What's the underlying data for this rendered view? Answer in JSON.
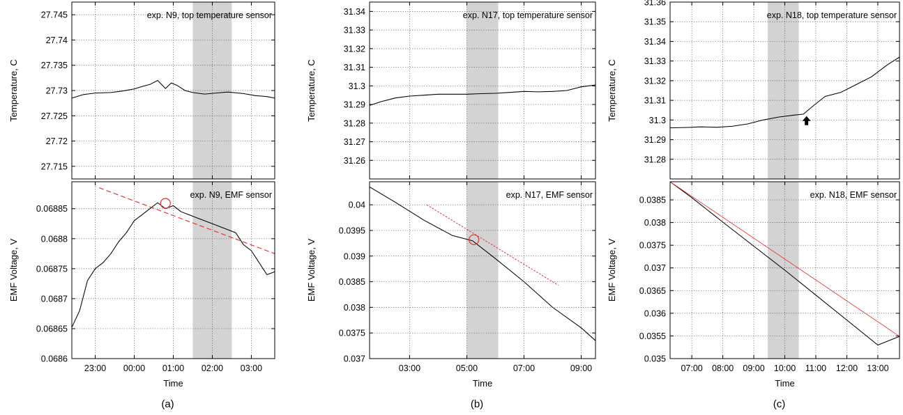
{
  "panels": [
    {
      "caption": "(a)",
      "xlabel": "Time",
      "xticks": [
        "23:00",
        "00:00",
        "01:00",
        "02:00",
        "03:00"
      ],
      "shade_x": [
        1.5,
        2.5
      ],
      "top": {
        "ylabel": "Temperature, C",
        "annotation": "exp. N9, top temperature sensor",
        "yticks": [
          "27.715",
          "27.72",
          "27.725",
          "27.73",
          "27.735",
          "27.74",
          "27.745"
        ]
      },
      "bottom": {
        "ylabel": "EMF Voltage, V",
        "annotation": "exp. N9, EMF sensor",
        "yticks": [
          "0.0686",
          "0.06865",
          "0.0687",
          "0.06875",
          "0.0688",
          "0.06885"
        ]
      }
    },
    {
      "caption": "(b)",
      "xlabel": "Time",
      "xticks": [
        "03:00",
        "05:00",
        "07:00",
        "09:00"
      ],
      "shade_x": [
        5.0,
        6.1
      ],
      "top": {
        "ylabel": "Temperature, C",
        "annotation": "exp. N17, top temperature sensor",
        "yticks": [
          "31.26",
          "31.27",
          "31.28",
          "31.29",
          "31.3",
          "31.31",
          "31.32",
          "31.33",
          "31.34"
        ]
      },
      "bottom": {
        "ylabel": "EMF Voltage, V",
        "annotation": "exp. N17, EMF sensor",
        "yticks": [
          "0.037",
          "0.0375",
          "0.038",
          "0.0385",
          "0.039",
          "0.0395",
          "0.04"
        ]
      }
    },
    {
      "caption": "(c)",
      "xlabel": "Time",
      "xticks": [
        "07:00",
        "08:00",
        "09:00",
        "10:00",
        "11:00",
        "12:00",
        "13:00"
      ],
      "shade_x": [
        9.45,
        10.45
      ],
      "top": {
        "ylabel": "Temperature, C",
        "annotation": "exp. N18, top temperature sensor",
        "yticks": [
          "31.28",
          "31.29",
          "31.3",
          "31.31",
          "31.32",
          "31.33",
          "31.34",
          "31.35",
          "31.36"
        ]
      },
      "bottom": {
        "ylabel": "EMF Voltage, V",
        "annotation": "exp. N18, EMF sensor",
        "yticks": [
          "0.035",
          "0.0355",
          "0.036",
          "0.0365",
          "0.037",
          "0.0375",
          "0.038",
          "0.0385"
        ]
      }
    }
  ],
  "chart_data": [
    {
      "type": "line",
      "panel": "a-top",
      "xlabel": "Time",
      "ylabel": "Temperature, C",
      "xlim": [
        -1.6,
        3.6
      ],
      "ylim": [
        27.7125,
        27.7475
      ],
      "x": [
        -1.6,
        -1.3,
        -1.0,
        -0.6,
        -0.3,
        0.0,
        0.2,
        0.4,
        0.6,
        0.8,
        0.95,
        1.1,
        1.3,
        1.5,
        1.8,
        2.1,
        2.4,
        2.8,
        3.1,
        3.4,
        3.6
      ],
      "values": [
        27.7285,
        27.7292,
        27.7295,
        27.7296,
        27.7299,
        27.7303,
        27.7308,
        27.7312,
        27.732,
        27.7304,
        27.7315,
        27.731,
        27.73,
        27.7296,
        27.7293,
        27.7295,
        27.7297,
        27.7294,
        27.729,
        27.7288,
        27.7285
      ]
    },
    {
      "type": "line",
      "panel": "a-bottom",
      "xlabel": "Time",
      "ylabel": "EMF Voltage, V",
      "xlim": [
        -1.6,
        3.6
      ],
      "ylim": [
        0.0686,
        0.068895
      ],
      "x": [
        -1.6,
        -1.4,
        -1.2,
        -1.0,
        -0.8,
        -0.6,
        -0.4,
        -0.2,
        0.0,
        0.2,
        0.4,
        0.6,
        0.8,
        1.0,
        1.2,
        1.4,
        1.6,
        1.8,
        2.0,
        2.2,
        2.4,
        2.6,
        2.8,
        3.0,
        3.2,
        3.4,
        3.6
      ],
      "values": [
        0.068652,
        0.06868,
        0.06873,
        0.06875,
        0.06876,
        0.068775,
        0.068795,
        0.06881,
        0.06883,
        0.06884,
        0.06885,
        0.06886,
        0.06885,
        0.068855,
        0.068845,
        0.06884,
        0.068835,
        0.06883,
        0.068825,
        0.06882,
        0.068815,
        0.06881,
        0.06879,
        0.06878,
        0.06876,
        0.06874,
        0.068745
      ],
      "fit_line": {
        "x": [
          -0.9,
          3.6
        ],
        "values": [
          0.068885,
          0.068775
        ]
      },
      "marker": {
        "x": 0.8,
        "value": 0.068859
      }
    },
    {
      "type": "line",
      "panel": "b-top",
      "xlabel": "Time",
      "ylabel": "Temperature, C",
      "xlim": [
        1.6,
        9.5
      ],
      "ylim": [
        31.25,
        31.345
      ],
      "x": [
        1.6,
        2.0,
        2.5,
        3.0,
        3.5,
        4.0,
        4.5,
        5.0,
        5.5,
        6.0,
        6.5,
        7.0,
        7.5,
        8.0,
        8.5,
        9.0,
        9.5
      ],
      "values": [
        31.2895,
        31.2915,
        31.2935,
        31.2945,
        31.295,
        31.2955,
        31.2955,
        31.2955,
        31.2958,
        31.296,
        31.2965,
        31.297,
        31.2968,
        31.297,
        31.2975,
        31.2995,
        31.3005
      ]
    },
    {
      "type": "line",
      "panel": "b-bottom",
      "xlabel": "Time",
      "ylabel": "EMF Voltage, V",
      "xlim": [
        1.6,
        9.5
      ],
      "ylim": [
        0.037,
        0.04045
      ],
      "x": [
        1.6,
        2.5,
        3.5,
        4.5,
        5.2,
        6.0,
        7.0,
        8.0,
        9.0,
        9.5
      ],
      "values": [
        0.04035,
        0.04005,
        0.0397,
        0.0394,
        0.0393,
        0.03895,
        0.0385,
        0.038,
        0.0376,
        0.03735
      ],
      "fit_line": {
        "x": [
          3.6,
          8.2
        ],
        "values": [
          0.04,
          0.03843
        ]
      },
      "marker": {
        "x": 5.25,
        "value": 0.03932
      }
    },
    {
      "type": "line",
      "panel": "c-top",
      "xlabel": "Time",
      "ylabel": "Temperature, C",
      "xlim": [
        6.3,
        13.7
      ],
      "ylim": [
        31.27,
        31.36
      ],
      "x": [
        6.3,
        6.8,
        7.3,
        7.8,
        8.3,
        8.8,
        9.3,
        9.8,
        10.3,
        10.6,
        10.9,
        11.3,
        11.8,
        12.3,
        12.8,
        13.3,
        13.7
      ],
      "values": [
        31.296,
        31.2962,
        31.2965,
        31.2963,
        31.2968,
        31.298,
        31.3,
        31.3015,
        31.3025,
        31.303,
        31.307,
        31.312,
        31.314,
        31.318,
        31.322,
        31.328,
        31.332
      ],
      "arrow": {
        "x": 10.7,
        "value": 31.2995
      }
    },
    {
      "type": "line",
      "panel": "c-bottom",
      "xlabel": "Time",
      "ylabel": "EMF Voltage, V",
      "xlim": [
        6.3,
        13.7
      ],
      "ylim": [
        0.035,
        0.0389
      ],
      "x": [
        6.3,
        7.0,
        8.0,
        9.0,
        10.0,
        11.0,
        12.0,
        13.0,
        13.7
      ],
      "values": [
        0.0389,
        0.03855,
        0.03801,
        0.03748,
        0.03695,
        0.0364,
        0.03585,
        0.0353,
        0.03549
      ],
      "fit_line": {
        "x": [
          6.3,
          13.7
        ],
        "values": [
          0.0389,
          0.03549
        ]
      }
    }
  ]
}
